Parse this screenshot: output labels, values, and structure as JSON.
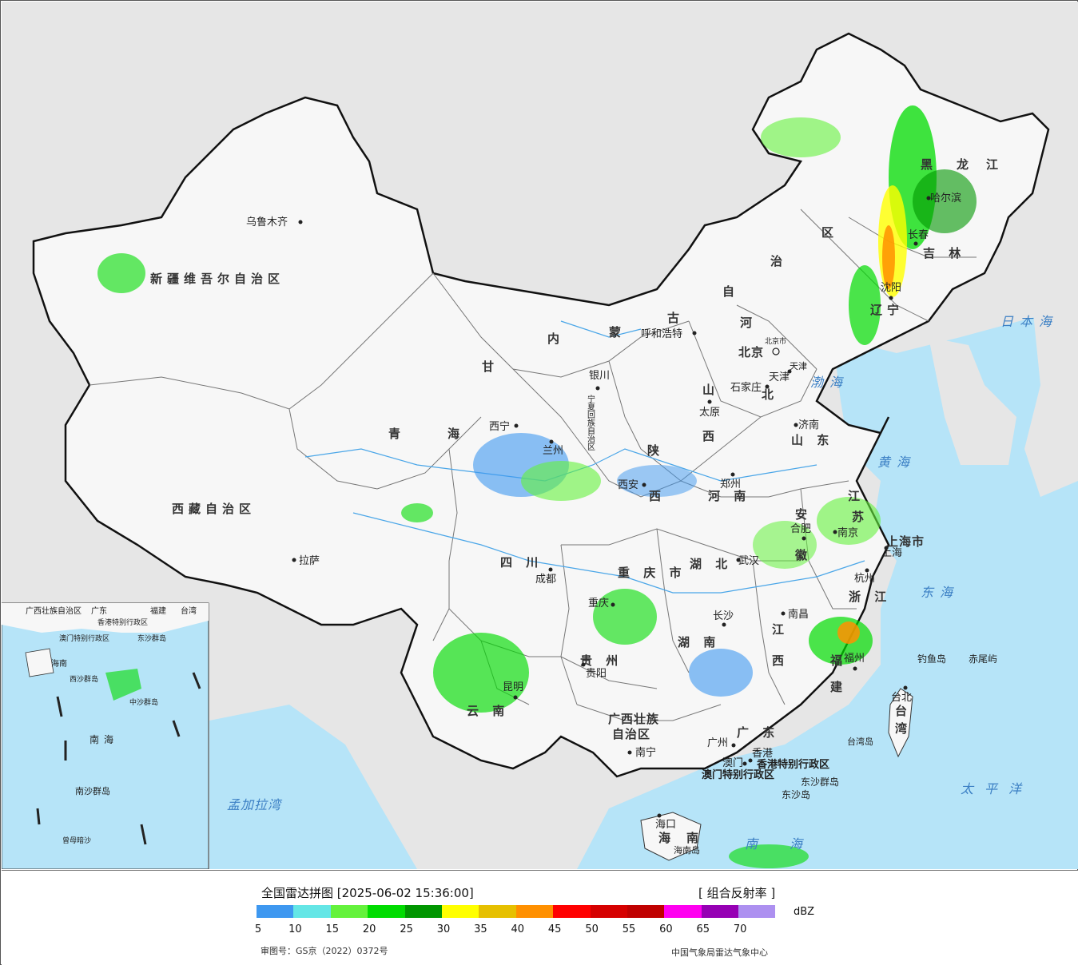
{
  "provinces": [
    {
      "id": "xinjiang",
      "text": "新疆维吾尔自治区"
    },
    {
      "id": "xizang",
      "text": "西藏自治区"
    },
    {
      "id": "qinghai-1",
      "text": "青"
    },
    {
      "id": "qinghai-2",
      "text": "海"
    },
    {
      "id": "gansu",
      "text": "甘"
    },
    {
      "id": "neimeng-nei",
      "text": "内"
    },
    {
      "id": "neimeng-meng",
      "text": "蒙"
    },
    {
      "id": "neimeng-gu",
      "text": "古"
    },
    {
      "id": "neimeng-zi",
      "text": "自"
    },
    {
      "id": "neimeng-zhi",
      "text": "治"
    },
    {
      "id": "neimeng-qu",
      "text": "区"
    },
    {
      "id": "heilongjiang-hei",
      "text": "黑"
    },
    {
      "id": "heilongjiang-long",
      "text": "龙"
    },
    {
      "id": "heilongjiang-jiang",
      "text": "江"
    },
    {
      "id": "jilin",
      "text": "吉 林"
    },
    {
      "id": "liaoning-liao",
      "text": "辽"
    },
    {
      "id": "liaoning-ning",
      "text": "宁"
    },
    {
      "id": "hebei-he",
      "text": "河"
    },
    {
      "id": "hebei-bei",
      "text": "北"
    },
    {
      "id": "shanxi-shan",
      "text": "山"
    },
    {
      "id": "shanxi-xi",
      "text": "西"
    },
    {
      "id": "shaanxi-shan",
      "text": "陕"
    },
    {
      "id": "shaanxi-xi",
      "text": "西"
    },
    {
      "id": "shandong",
      "text": "山 东"
    },
    {
      "id": "henan",
      "text": "河 南"
    },
    {
      "id": "jiangsu-jiang",
      "text": "江"
    },
    {
      "id": "jiangsu-su",
      "text": "苏"
    },
    {
      "id": "anhui-an",
      "text": "安"
    },
    {
      "id": "anhui-hui",
      "text": "徽"
    },
    {
      "id": "hubei",
      "text": "湖 北"
    },
    {
      "id": "hunan",
      "text": "湖 南"
    },
    {
      "id": "sichuan",
      "text": "四 川"
    },
    {
      "id": "chongqing",
      "text": "重 庆 市"
    },
    {
      "id": "guizhou",
      "text": "贵 州"
    },
    {
      "id": "yunnan",
      "text": "云 南"
    },
    {
      "id": "jiangxi-jiang",
      "text": "江"
    },
    {
      "id": "jiangxi-xi",
      "text": "西"
    },
    {
      "id": "zhejiang",
      "text": "浙 江"
    },
    {
      "id": "fujian-fu",
      "text": "福"
    },
    {
      "id": "fujian-jian",
      "text": "建"
    },
    {
      "id": "guangxi-1",
      "text": "广西壮族"
    },
    {
      "id": "guangxi-2",
      "text": "自治区"
    },
    {
      "id": "guangdong",
      "text": "广 东"
    },
    {
      "id": "taiwan-tai",
      "text": "台"
    },
    {
      "id": "taiwan-wan",
      "text": "湾"
    },
    {
      "id": "hainan-hai",
      "text": "海"
    },
    {
      "id": "hainan-nan",
      "text": "南"
    },
    {
      "id": "shanghai",
      "text": "上海市"
    },
    {
      "id": "ningxia",
      "text": "宁夏回族自治区"
    },
    {
      "id": "beijing",
      "text": "北京"
    },
    {
      "id": "tianjin",
      "text": "天津"
    },
    {
      "id": "hk",
      "text": "香港特别行政区"
    },
    {
      "id": "macau",
      "text": "澳门特别行政区"
    }
  ],
  "cities": [
    {
      "id": "urumqi",
      "text": "乌鲁木齐"
    },
    {
      "id": "lhasa",
      "text": "拉萨"
    },
    {
      "id": "xining",
      "text": "西宁"
    },
    {
      "id": "lanzhou",
      "text": "兰州"
    },
    {
      "id": "yinchuan",
      "text": "银川"
    },
    {
      "id": "hohhot",
      "text": "呼和浩特"
    },
    {
      "id": "harbin",
      "text": "哈尔滨"
    },
    {
      "id": "changchun",
      "text": "长春"
    },
    {
      "id": "shenyang",
      "text": "沈阳"
    },
    {
      "id": "beijing-city",
      "text": "北京市"
    },
    {
      "id": "tianjin-city",
      "text": "天津"
    },
    {
      "id": "shijiazhuang",
      "text": "石家庄"
    },
    {
      "id": "taiyuan",
      "text": "太原"
    },
    {
      "id": "jinan",
      "text": "济南"
    },
    {
      "id": "zhengzhou",
      "text": "郑州"
    },
    {
      "id": "xian",
      "text": "西安"
    },
    {
      "id": "hefei",
      "text": "合肥"
    },
    {
      "id": "nanjing",
      "text": "南京"
    },
    {
      "id": "shanghai-city",
      "text": "上海"
    },
    {
      "id": "hangzhou",
      "text": "杭州"
    },
    {
      "id": "wuhan",
      "text": "武汉"
    },
    {
      "id": "chengdu",
      "text": "成都"
    },
    {
      "id": "chongqing-city",
      "text": "重庆"
    },
    {
      "id": "changsha",
      "text": "长沙"
    },
    {
      "id": "nanchang",
      "text": "南昌"
    },
    {
      "id": "fuzhou",
      "text": "福州"
    },
    {
      "id": "guiyang",
      "text": "贵阳"
    },
    {
      "id": "kunming",
      "text": "昆明"
    },
    {
      "id": "nanning",
      "text": "南宁"
    },
    {
      "id": "guangzhou",
      "text": "广州"
    },
    {
      "id": "hongkong",
      "text": "香港"
    },
    {
      "id": "aomen",
      "text": "澳门"
    },
    {
      "id": "haikou",
      "text": "海口"
    },
    {
      "id": "taibei",
      "text": "台北"
    }
  ],
  "islands": [
    {
      "id": "diaoyu",
      "text": "钓鱼岛"
    },
    {
      "id": "chiwei",
      "text": "赤尾屿"
    },
    {
      "id": "taiwan-island",
      "text": "台湾岛"
    },
    {
      "id": "dongsha-qundao",
      "text": "东沙群岛"
    },
    {
      "id": "dongsha-dao",
      "text": "东沙岛"
    },
    {
      "id": "hainan-island",
      "text": "海南岛"
    }
  ],
  "seas": [
    {
      "id": "bohai",
      "text": "渤海"
    },
    {
      "id": "huanghai",
      "text": "黄海"
    },
    {
      "id": "donghai",
      "text": "东海"
    },
    {
      "id": "japan-sea",
      "text": "日本海"
    },
    {
      "id": "pacific",
      "text": "太平洋"
    },
    {
      "id": "nanhai",
      "text": "南海"
    },
    {
      "id": "bengal",
      "text": "孟加拉湾"
    }
  ],
  "inset": {
    "labels": [
      {
        "id": "inset-guangxi",
        "text": "广西壮族自治区"
      },
      {
        "id": "inset-guangdong",
        "text": "广东"
      },
      {
        "id": "inset-fujian",
        "text": "福建"
      },
      {
        "id": "inset-taiwan",
        "text": "台湾"
      },
      {
        "id": "inset-hk",
        "text": "香港特别行政区"
      },
      {
        "id": "inset-macau",
        "text": "澳门特别行政区"
      },
      {
        "id": "inset-hainan",
        "text": "海南"
      },
      {
        "id": "inset-nanhai",
        "text": "南海"
      },
      {
        "id": "inset-dongsha",
        "text": "东沙群岛"
      },
      {
        "id": "inset-xisha",
        "text": "西沙群岛"
      },
      {
        "id": "inset-zhongsha",
        "text": "中沙群岛"
      },
      {
        "id": "inset-nansha",
        "text": "南沙群岛"
      },
      {
        "id": "inset-zengmu",
        "text": "曾母暗沙"
      }
    ]
  },
  "legend": {
    "title": "全国雷达拼图 [2025-06-02 15:36:00]",
    "product": "[ 组合反射率 ]",
    "unit": "dBZ",
    "ticks": [
      "5",
      "10",
      "15",
      "20",
      "25",
      "30",
      "35",
      "40",
      "45",
      "50",
      "55",
      "60",
      "65",
      "70"
    ],
    "colors": [
      "#3e98f0",
      "#64e6e6",
      "#64f23c",
      "#00dc00",
      "#009600",
      "#ffff00",
      "#e6c000",
      "#ff9000",
      "#ff0000",
      "#d60000",
      "#c00000",
      "#ff00f0",
      "#9600b4",
      "#ad90f0"
    ],
    "approval": "审图号：GS京（2022）0372号",
    "source": "中国气象局雷达气象中心"
  },
  "colors": {
    "ocean": "#b6e4f8",
    "foreign_land": "#e6e6e6",
    "china_land": "#f7f7f7",
    "border": "#111111"
  }
}
